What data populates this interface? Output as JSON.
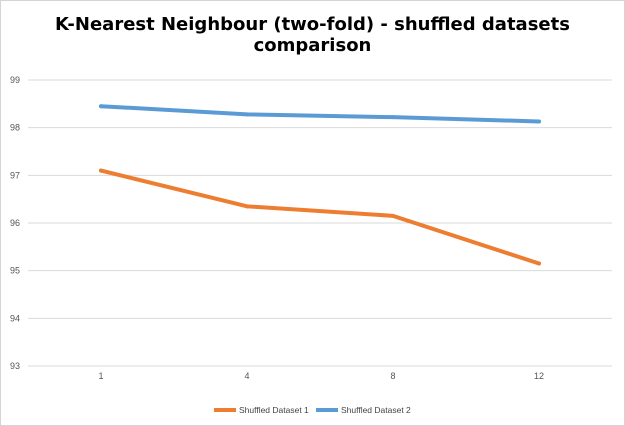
{
  "chart_data": {
    "type": "line",
    "title": "K-Nearest Neighbour (two-fold) - shuffled datasets comparison",
    "categories": [
      "1",
      "4",
      "8",
      "12"
    ],
    "series": [
      {
        "name": "Shuffled Dataset 1",
        "color": "#ED7D31",
        "values": [
          97.1,
          96.35,
          96.15,
          95.15
        ]
      },
      {
        "name": "Shuffled Dataset 2",
        "color": "#5B9BD5",
        "values": [
          98.45,
          98.28,
          98.22,
          98.13
        ]
      }
    ],
    "ylim": [
      93,
      99
    ],
    "yticks": [
      "93",
      "94",
      "95",
      "96",
      "97",
      "98",
      "99"
    ],
    "grid": true,
    "legend_position": "bottom",
    "xlabel": "",
    "ylabel": ""
  }
}
